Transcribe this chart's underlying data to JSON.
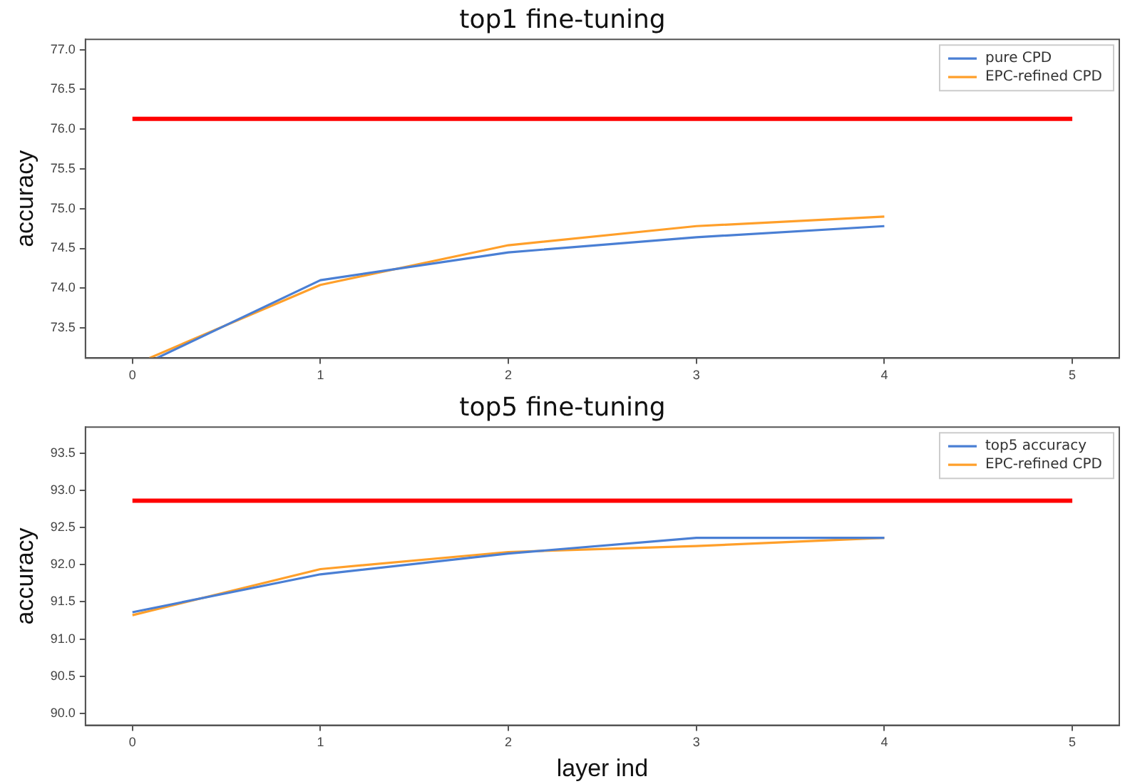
{
  "chart_data": [
    {
      "type": "line",
      "title": "top1 fine-tuning",
      "ylabel": "accuracy",
      "xlim": [
        -0.25,
        5.25
      ],
      "xticks": [
        0,
        1,
        2,
        3,
        4,
        5
      ],
      "ylim": [
        73.12,
        77.13
      ],
      "yticks": [
        73.5,
        {
          "value": 74,
          "label": "74.0"
        },
        74.5,
        {
          "value": 75,
          "label": "75.0"
        },
        75.5,
        {
          "value": 76,
          "label": "76.0"
        },
        76.5,
        {
          "value": 77,
          "label": "77.0"
        }
      ],
      "grid": false,
      "legend": "top right",
      "marker": "none",
      "line_style": "solid",
      "series": [
        {
          "name": "pure CPD",
          "color": "#4a7fd4",
          "x": [
            0.13,
            1,
            2,
            3,
            4
          ],
          "values": [
            73.12,
            74.1,
            74.45,
            74.64,
            74.78
          ]
        },
        {
          "name": "EPC-refined CPD",
          "color": "#ff9f2a",
          "x": [
            0.09,
            1,
            2,
            3,
            4
          ],
          "values": [
            73.12,
            74.04,
            74.54,
            74.78,
            74.9
          ]
        },
        {
          "color": "#ff0000",
          "x": [
            0,
            5
          ],
          "values": [
            76.13,
            76.13
          ]
        }
      ]
    },
    {
      "type": "line",
      "title": "top5 fine-tuning",
      "xlabel": "layer ind",
      "ylabel": "accuracy",
      "x": [
        0,
        1,
        2,
        3,
        4
      ],
      "xlim": [
        -0.25,
        5.25
      ],
      "xticks": [
        0,
        1,
        2,
        3,
        4,
        5
      ],
      "ylim": [
        89.84,
        93.85
      ],
      "yticks": [
        {
          "value": 90,
          "label": "90.0"
        },
        90.5,
        {
          "value": 91,
          "label": "91.0"
        },
        91.5,
        {
          "value": 92,
          "label": "92.0"
        },
        92.5,
        {
          "value": 93,
          "label": "93.0"
        },
        93.5
      ],
      "grid": false,
      "legend": "top right",
      "marker": "none",
      "line_style": "solid",
      "series": [
        {
          "name": "top5 accuracy",
          "color": "#4a7fd4",
          "values": [
            91.36,
            91.87,
            92.15,
            92.36,
            92.36
          ]
        },
        {
          "name": "EPC-refined CPD",
          "color": "#ff9f2a",
          "values": [
            91.32,
            91.94,
            92.17,
            92.25,
            92.36
          ]
        },
        {
          "color": "#ff0000",
          "x": [
            0,
            5
          ],
          "values": [
            92.86,
            92.86
          ]
        }
      ]
    }
  ]
}
